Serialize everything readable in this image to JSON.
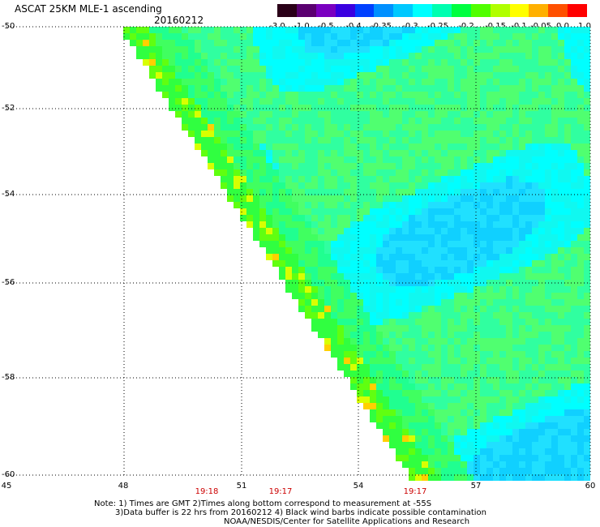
{
  "header": {
    "title": "ASCAT 25KM MLE-1 ascending",
    "date": "20160212"
  },
  "colorbar": {
    "ticks": [
      "-3.0",
      "-1.0",
      "-0.5",
      "-0.4",
      "-0.35",
      "-0.3",
      "-0.25",
      "-0.2",
      "-0.15",
      "-0.1",
      "-0.05",
      "0.0",
      "1.0"
    ],
    "colors": [
      "#2a0018",
      "#5a0070",
      "#7a00c0",
      "#3a00e0",
      "#0040ff",
      "#0090ff",
      "#00c8ff",
      "#00ffff",
      "#00ffb0",
      "#00ff40",
      "#50ff00",
      "#b0ff00",
      "#ffff00",
      "#ffb000",
      "#ff5000",
      "#ff0000"
    ]
  },
  "axes": {
    "y_labels": [
      "-50",
      "-52",
      "-54",
      "-56",
      "-58",
      "-60"
    ],
    "x_labels": [
      "45",
      "48",
      "51",
      "54",
      "57",
      "60"
    ]
  },
  "time_labels": [
    "19:18",
    "19:17",
    "19:17"
  ],
  "colors": {
    "time_label": "#cc0000",
    "grid": "#000000"
  },
  "notes": {
    "line1": "Note: 1) Times are GMT 2)Times along bottom correspond to measurement at -55S",
    "line2": "3)Data buffer is 22 hrs from 20160212 4) Black wind barbs indicate possible contamination",
    "line3": "NOAA/NESDIS/Center for Satellite Applications and Research"
  }
}
